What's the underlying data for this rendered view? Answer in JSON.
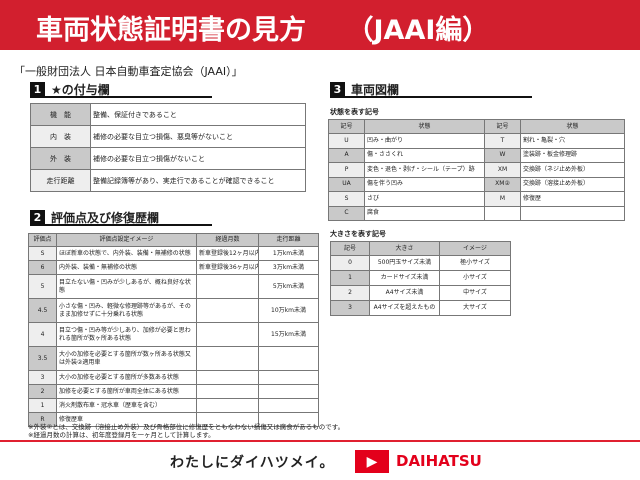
{
  "header": {
    "title": "車両状態証明書の見方　　（JAAI編）"
  },
  "org": "「一般財団法人 日本自動車査定協会（JAAI）」",
  "sec1": {
    "num": "1",
    "title": "★の付与欄",
    "rows": [
      {
        "label": "機　能",
        "desc": "整備、保証付きであること"
      },
      {
        "label": "内　装",
        "desc": "補修の必要な目立つ損傷、悪臭等がないこと"
      },
      {
        "label": "外　装",
        "desc": "補修の必要な目立つ損傷がないこと"
      },
      {
        "label": "走行距離",
        "desc": "整備記録簿等があり、実走行であることが確認できること"
      }
    ]
  },
  "sec2": {
    "num": "2",
    "title": "評価点及び修復歴欄",
    "headers": [
      "評価点",
      "評価点設定イメージ",
      "経過月数",
      "走行距離"
    ],
    "rows": [
      [
        "S",
        "ほぼ新車の状態で、内外装、装備・無補修の状態",
        "新車登録後12ヶ月以内",
        "1万km未満"
      ],
      [
        "6",
        "内外装、装備・無補修の状態",
        "新車登録後36ヶ月以内",
        "3万km未満"
      ],
      [
        "5",
        "目立たない傷・凹みが少しあるが、概ね良好な状態",
        "",
        "5万km未満"
      ],
      [
        "4.5",
        "小さな傷・凹み、軽微な修理跡等があるが、そのまま加修せずに十分乗れる状態",
        "",
        "10万km未満"
      ],
      [
        "4",
        "目立つ傷・凹み等が少しあり、加修が必要と思われる箇所が数ヶ所ある状態",
        "",
        "15万km未満"
      ],
      [
        "3.5",
        "大小の加修を必要とする箇所が数ヶ所ある状態又は外装②適用車",
        "",
        ""
      ],
      [
        "3",
        "大小の加修を必要とする箇所が多数ある状態",
        "",
        ""
      ],
      [
        "2",
        "加修を必要とする箇所が車両全体にある状態",
        "",
        ""
      ],
      [
        "1",
        "消火剤散布車・冠水車（歴車を含む）",
        "",
        ""
      ],
      [
        "R",
        "修復歴車",
        "",
        ""
      ]
    ]
  },
  "notes": [
    "※外装②とは、交換跡（溶接止め外装）及び骨格部位に修復歴をともなわない損傷又は腐食があるものです。",
    "※経過月数の計算は、初年度登録月を一ヶ月として計算します。"
  ],
  "sec3": {
    "num": "3",
    "title": "車両図欄",
    "state_caption": "状態を表す記号",
    "state_headers": [
      "記号",
      "状態",
      "記号",
      "状態"
    ],
    "state_rows": [
      [
        "U",
        "凹み・曲がり",
        "T",
        "割れ・亀裂・穴"
      ],
      [
        "A",
        "傷・ささくれ",
        "W",
        "塗装跡・板金修理跡"
      ],
      [
        "P",
        "変色・退色・剥げ・シール（テープ）跡",
        "XM",
        "交換跡（ネジ止め外板）"
      ],
      [
        "UA",
        "傷を伴う凹み",
        "XM②",
        "交換跡（溶接止め外板）"
      ],
      [
        "S",
        "さび",
        "M",
        "修復歴"
      ],
      [
        "C",
        "腐食",
        "",
        ""
      ]
    ],
    "size_caption": "大きさを表す記号",
    "size_headers": [
      "記号",
      "大きさ",
      "イメージ"
    ],
    "size_rows": [
      [
        "0",
        "500円玉サイズ未満",
        "極小サイズ"
      ],
      [
        "1",
        "カードサイズ未満",
        "小サイズ"
      ],
      [
        "2",
        "A4サイズ未満",
        "中サイズ"
      ],
      [
        "3",
        "A4サイズを超えたもの",
        "大サイズ"
      ]
    ]
  },
  "footer": {
    "slogan": "わたしにダイハツメイ。",
    "brand": "DAIHATSU",
    "brand_color": "#e3001b",
    "header_color": "#d21f2e"
  }
}
